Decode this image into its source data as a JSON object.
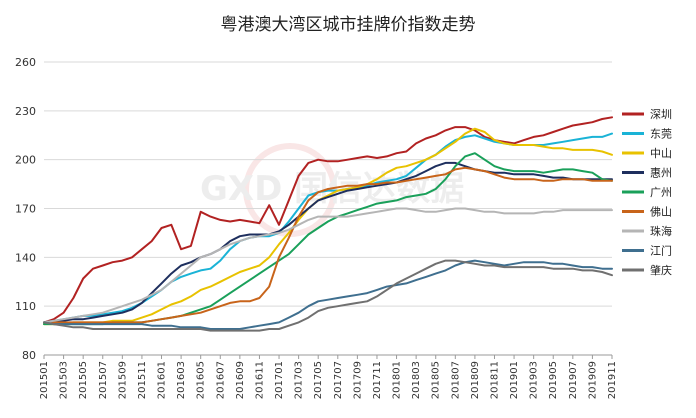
{
  "chart_data": {
    "type": "line",
    "title": "粤港澳大湾区城市挂牌价指数走势",
    "xlabel": "",
    "ylabel": "",
    "ylim": [
      80,
      260
    ],
    "yticks": [
      80,
      110,
      140,
      170,
      200,
      230,
      260
    ],
    "grid": true,
    "legend_position": "right",
    "x": [
      "201501",
      "201502",
      "201503",
      "201504",
      "201505",
      "201506",
      "201507",
      "201508",
      "201509",
      "201510",
      "201511",
      "201512",
      "201601",
      "201602",
      "201603",
      "201604",
      "201605",
      "201606",
      "201607",
      "201608",
      "201609",
      "201610",
      "201611",
      "201612",
      "201701",
      "201702",
      "201703",
      "201704",
      "201705",
      "201706",
      "201707",
      "201708",
      "201709",
      "201710",
      "201711",
      "201712",
      "201801",
      "201802",
      "201803",
      "201804",
      "201805",
      "201806",
      "201807",
      "201808",
      "201809",
      "201810",
      "201811",
      "201812",
      "201901",
      "201902",
      "201903",
      "201904",
      "201905",
      "201906",
      "201907",
      "201908",
      "201909",
      "201910",
      "201911"
    ],
    "x_tick_labels": [
      "201501",
      "201503",
      "201505",
      "201507",
      "201509",
      "201511",
      "201601",
      "201603",
      "201605",
      "201607",
      "201609",
      "201611",
      "201701",
      "201703",
      "201705",
      "201707",
      "201709",
      "201711",
      "201801",
      "201803",
      "201805",
      "201807",
      "201809",
      "201811",
      "201901",
      "201903",
      "201905",
      "201907",
      "201909",
      "201911"
    ],
    "series": [
      {
        "name": "深圳",
        "color": "#b22222",
        "values": [
          100,
          102,
          106,
          115,
          127,
          133,
          135,
          137,
          138,
          140,
          145,
          150,
          158,
          160,
          145,
          147,
          168,
          165,
          163,
          162,
          163,
          162,
          161,
          172,
          160,
          175,
          190,
          198,
          200,
          199,
          199,
          200,
          201,
          202,
          201,
          202,
          204,
          205,
          210,
          213,
          215,
          218,
          220,
          220,
          218,
          214,
          212,
          211,
          210,
          212,
          214,
          215,
          217,
          219,
          221,
          222,
          223,
          225,
          226
        ]
      },
      {
        "name": "东莞",
        "color": "#1ab3d6",
        "values": [
          100,
          101,
          102,
          103,
          104,
          104,
          105,
          106,
          107,
          109,
          112,
          116,
          120,
          125,
          128,
          130,
          132,
          133,
          138,
          145,
          150,
          152,
          153,
          153,
          155,
          162,
          170,
          178,
          180,
          181,
          181,
          182,
          183,
          184,
          186,
          187,
          188,
          190,
          195,
          200,
          203,
          208,
          212,
          214,
          215,
          213,
          211,
          210,
          209,
          209,
          209,
          209,
          210,
          211,
          212,
          213,
          214,
          214,
          216
        ]
      },
      {
        "name": "中山",
        "color": "#e8c200",
        "values": [
          99,
          99,
          99,
          100,
          100,
          100,
          100,
          101,
          101,
          101,
          103,
          105,
          108,
          111,
          113,
          116,
          120,
          122,
          125,
          128,
          131,
          133,
          135,
          140,
          148,
          155,
          163,
          170,
          175,
          178,
          181,
          182,
          183,
          185,
          188,
          192,
          195,
          196,
          198,
          200,
          203,
          207,
          211,
          216,
          219,
          217,
          212,
          210,
          209,
          209,
          209,
          208,
          207,
          207,
          206,
          206,
          206,
          205,
          203
        ]
      },
      {
        "name": "惠州",
        "color": "#1e2f5e",
        "values": [
          100,
          100,
          101,
          102,
          102,
          103,
          104,
          105,
          106,
          108,
          112,
          118,
          124,
          130,
          135,
          137,
          140,
          142,
          145,
          150,
          153,
          154,
          154,
          154,
          156,
          160,
          165,
          170,
          175,
          177,
          179,
          181,
          182,
          183,
          184,
          185,
          186,
          188,
          190,
          193,
          196,
          198,
          198,
          196,
          194,
          193,
          192,
          192,
          191,
          191,
          191,
          190,
          189,
          189,
          188,
          188,
          188,
          188,
          188
        ]
      },
      {
        "name": "广州",
        "color": "#1aa05a",
        "values": [
          99,
          99,
          99,
          99,
          99,
          99,
          99,
          100,
          100,
          100,
          100,
          101,
          102,
          103,
          104,
          106,
          108,
          110,
          114,
          118,
          122,
          126,
          130,
          134,
          138,
          142,
          148,
          154,
          158,
          162,
          165,
          167,
          169,
          171,
          173,
          174,
          175,
          177,
          178,
          179,
          182,
          188,
          196,
          202,
          204,
          200,
          196,
          194,
          193,
          193,
          193,
          192,
          193,
          194,
          194,
          193,
          192,
          188,
          187
        ]
      },
      {
        "name": "佛山",
        "color": "#c8641a",
        "values": [
          100,
          100,
          100,
          100,
          100,
          100,
          100,
          100,
          100,
          100,
          100,
          101,
          102,
          103,
          104,
          105,
          106,
          108,
          110,
          112,
          113,
          113,
          115,
          122,
          140,
          152,
          165,
          175,
          180,
          182,
          183,
          184,
          184,
          185,
          185,
          186,
          186,
          187,
          188,
          189,
          190,
          191,
          194,
          195,
          194,
          193,
          191,
          189,
          188,
          188,
          188,
          187,
          187,
          188,
          188,
          188,
          187,
          187,
          187
        ]
      },
      {
        "name": "珠海",
        "color": "#b5b5b5",
        "values": [
          100,
          101,
          102,
          103,
          104,
          105,
          106,
          108,
          110,
          112,
          114,
          117,
          120,
          125,
          130,
          135,
          140,
          142,
          145,
          148,
          150,
          152,
          153,
          154,
          155,
          157,
          160,
          163,
          165,
          165,
          165,
          165,
          166,
          167,
          168,
          169,
          170,
          170,
          169,
          168,
          168,
          169,
          170,
          170,
          169,
          168,
          168,
          167,
          167,
          167,
          167,
          168,
          168,
          169,
          169,
          169,
          169,
          169,
          169
        ]
      },
      {
        "name": "江门",
        "color": "#3f6f8f",
        "values": [
          100,
          99,
          99,
          99,
          99,
          99,
          99,
          99,
          99,
          99,
          99,
          98,
          98,
          98,
          97,
          97,
          97,
          96,
          96,
          96,
          96,
          97,
          98,
          99,
          100,
          103,
          106,
          110,
          113,
          114,
          115,
          116,
          117,
          118,
          120,
          122,
          123,
          124,
          126,
          128,
          130,
          132,
          135,
          137,
          138,
          137,
          136,
          135,
          136,
          137,
          137,
          137,
          136,
          136,
          135,
          134,
          134,
          133,
          133
        ]
      },
      {
        "name": "肇庆",
        "color": "#707070",
        "values": [
          100,
          99,
          98,
          97,
          97,
          96,
          96,
          96,
          96,
          96,
          96,
          96,
          96,
          96,
          96,
          96,
          96,
          95,
          95,
          95,
          95,
          95,
          95,
          96,
          96,
          98,
          100,
          103,
          107,
          109,
          110,
          111,
          112,
          113,
          116,
          120,
          124,
          127,
          130,
          133,
          136,
          138,
          138,
          137,
          136,
          135,
          135,
          134,
          134,
          134,
          134,
          134,
          133,
          133,
          133,
          132,
          132,
          131,
          129
        ]
      }
    ],
    "watermark": "GXD 国信达数据"
  }
}
